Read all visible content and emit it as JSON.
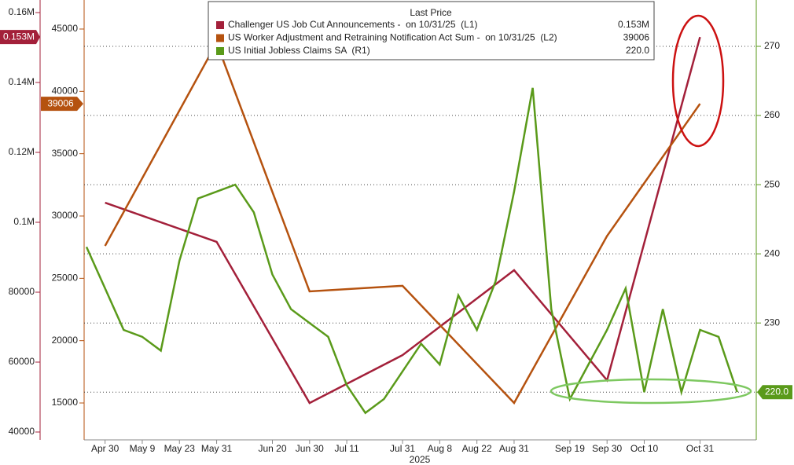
{
  "chart_data": {
    "type": "line",
    "legend_title": "Last Price",
    "xlabel": "2025",
    "categories": [
      null,
      "Apr 30",
      null,
      "May 9",
      null,
      "May 23",
      null,
      "May 31",
      null,
      null,
      "Jun 20",
      null,
      "Jun 30",
      null,
      "Jul 11",
      null,
      null,
      "Jul 31",
      null,
      "Aug 8",
      null,
      "Aug 22",
      null,
      "Aug 31",
      null,
      null,
      "Sep 19",
      null,
      "Sep 30",
      null,
      "Oct 10",
      null,
      null,
      "Oct 31",
      null,
      null
    ],
    "ylim": [
      37750,
      163600
    ],
    "yticks": [
      40000,
      60000,
      80000,
      {
        "value": 100000,
        "label": "0.1M"
      },
      {
        "value": 120000,
        "label": "0.12M"
      },
      {
        "value": 140000,
        "label": "0.14M"
      },
      {
        "value": 160000,
        "label": "0.16M"
      }
    ],
    "y2lim": [
      12040,
      47330
    ],
    "y2ticks": [
      15000,
      20000,
      25000,
      30000,
      35000,
      40000,
      45000
    ],
    "y3lim": [
      213.1,
      276.7
    ],
    "y3ticks": [
      220,
      230,
      240,
      250,
      260,
      270
    ],
    "grid": true,
    "series": [
      {
        "name": "Challenger US Job Cut Announcements -  on 10/31/25  (L1)",
        "color": "#a3203a",
        "axis": "y",
        "x": [
          "Apr 30",
          "May 31",
          "Jun 30",
          "Jul 31",
          "Aug 31",
          "Sep 30",
          "Oct 31"
        ],
        "values": [
          105600,
          94400,
          48300,
          62000,
          86300,
          54800,
          153000
        ],
        "last_label": "0.153M"
      },
      {
        "name": "US Worker Adjustment and Retraining Notification Act Sum -  on 10/31/25  (L2)",
        "color": "#b5520f",
        "axis": "y2",
        "x": [
          "Apr 30",
          "May 31",
          "Jun 30",
          "Jul 31",
          "Aug 31",
          "Sep 30",
          "Oct 31"
        ],
        "values": [
          27600,
          43900,
          23950,
          24400,
          15000,
          28400,
          39006
        ],
        "last_label": "39006"
      },
      {
        "name": "US Initial Jobless Claims SA  (R1)",
        "color": "#5a9a1a",
        "axis": "y3",
        "values": [
          241,
          235,
          229,
          228,
          226,
          239,
          248,
          249,
          250,
          246,
          237,
          232,
          230,
          228,
          221,
          217,
          219,
          223,
          227,
          224,
          234,
          229,
          236,
          249,
          264,
          232,
          219,
          224,
          229,
          235,
          220,
          232,
          220,
          229,
          228,
          220
        ],
        "last_label": "220.0"
      }
    ]
  }
}
